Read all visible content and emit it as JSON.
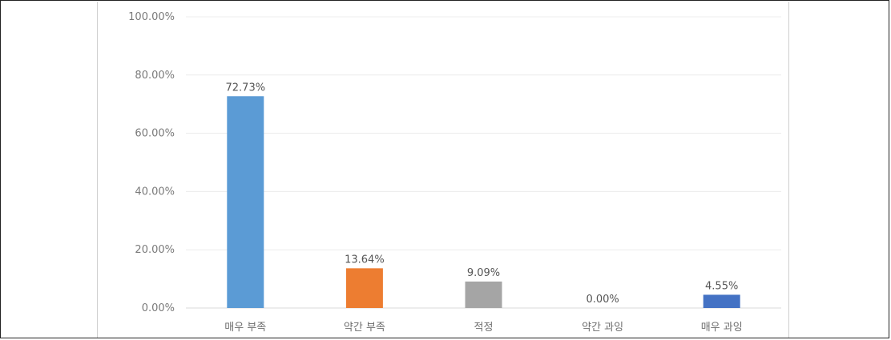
{
  "chart_data": {
    "type": "bar",
    "categories": [
      "매우 부족",
      "약간 부족",
      "적정",
      "약간 과잉",
      "매우 과잉"
    ],
    "values": [
      72.73,
      13.64,
      9.09,
      0.0,
      4.55
    ],
    "data_labels": [
      "72.73%",
      "13.64%",
      "9.09%",
      "0.00%",
      "4.55%"
    ],
    "bar_colors": [
      "#5b9bd5",
      "#ed7d31",
      "#a5a5a5",
      "#ffc000",
      "#4472c4"
    ],
    "ylim": [
      0,
      100
    ],
    "y_ticks": [
      0,
      20,
      40,
      60,
      80,
      100
    ],
    "y_tick_labels": [
      "0.00%",
      "20.00%",
      "40.00%",
      "60.00%",
      "80.00%",
      "100.00%"
    ],
    "grid": true,
    "legend": "none",
    "title": "",
    "xlabel": "",
    "ylabel": ""
  }
}
